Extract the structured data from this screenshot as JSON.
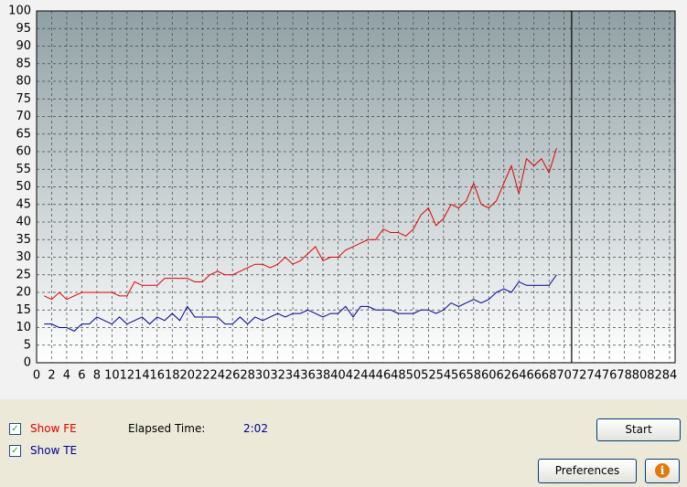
{
  "chart_data": {
    "type": "line",
    "x": [
      1,
      2,
      3,
      4,
      5,
      6,
      7,
      8,
      9,
      10,
      11,
      12,
      13,
      14,
      15,
      16,
      17,
      18,
      19,
      20,
      21,
      22,
      23,
      24,
      25,
      26,
      27,
      28,
      29,
      30,
      31,
      32,
      33,
      34,
      35,
      36,
      37,
      38,
      39,
      40,
      41,
      42,
      43,
      44,
      45,
      46,
      47,
      48,
      49,
      50,
      51,
      52,
      53,
      54,
      55,
      56,
      57,
      58,
      59,
      60,
      61,
      62,
      63,
      64,
      65,
      66,
      67,
      68,
      69
    ],
    "series": [
      {
        "name": "Show FE",
        "color": "#e00000",
        "values": [
          19,
          18,
          20,
          18,
          19,
          20,
          20,
          20,
          20,
          20,
          19,
          19,
          23,
          22,
          22,
          22,
          24,
          24,
          24,
          24,
          23,
          23,
          25,
          26,
          25,
          25,
          26,
          27,
          28,
          28,
          27,
          28,
          30,
          28,
          29,
          31,
          33,
          29,
          30,
          30,
          32,
          33,
          34,
          35,
          35,
          38,
          37,
          37,
          36,
          38,
          42,
          44,
          39,
          41,
          45,
          44,
          46,
          51,
          45,
          44,
          46,
          51,
          56,
          48,
          58,
          56,
          58,
          54,
          61
        ]
      },
      {
        "name": "Show TE",
        "color": "#000090",
        "values": [
          11,
          11,
          10,
          10,
          9,
          11,
          11,
          13,
          12,
          11,
          13,
          11,
          12,
          13,
          11,
          13,
          12,
          14,
          12,
          16,
          13,
          13,
          13,
          13,
          11,
          11,
          13,
          11,
          13,
          12,
          13,
          14,
          13,
          14,
          14,
          15,
          14,
          13,
          14,
          14,
          16,
          13,
          16,
          16,
          15,
          15,
          15,
          14,
          14,
          14,
          15,
          15,
          14,
          15,
          17,
          16,
          17,
          18,
          17,
          18,
          20,
          21,
          20,
          23,
          22,
          22,
          22,
          22,
          25
        ]
      }
    ],
    "position": 71,
    "xlim": [
      0,
      84
    ],
    "xticks": [
      0,
      2,
      4,
      6,
      8,
      10,
      12,
      14,
      16,
      18,
      20,
      22,
      24,
      26,
      28,
      30,
      32,
      34,
      36,
      38,
      40,
      42,
      44,
      46,
      48,
      50,
      52,
      54,
      56,
      58,
      60,
      62,
      64,
      66,
      68,
      70,
      72,
      74,
      76,
      78,
      80,
      82,
      84
    ],
    "ylim": [
      0,
      100
    ],
    "yticks": [
      0,
      5,
      10,
      15,
      20,
      25,
      30,
      35,
      40,
      45,
      50,
      55,
      60,
      65,
      70,
      75,
      80,
      85,
      90,
      95,
      100
    ],
    "grid": true
  },
  "controls": {
    "elapsed_label": "Elapsed Time:",
    "elapsed_value": "2:02",
    "start": "Start",
    "preferences": "Preferences",
    "info": "i"
  }
}
